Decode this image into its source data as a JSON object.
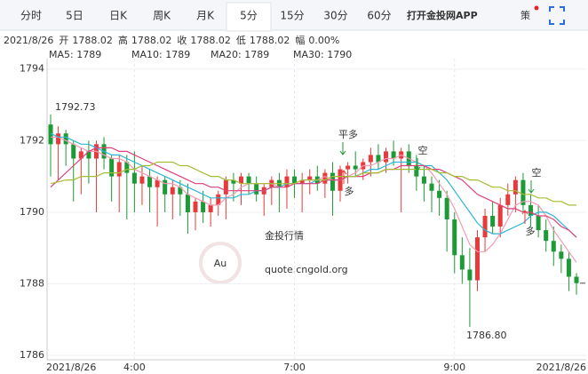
{
  "tabs": [
    "分时",
    "5日",
    "日K",
    "周K",
    "月K",
    "5分",
    "15分",
    "30分",
    "60分"
  ],
  "active_tab": 5,
  "app_link": "打开金投网APP",
  "strategy_icon": "策",
  "info": {
    "date": "2021/8/26",
    "fields": [
      {
        "label": "开",
        "value": "1788.02"
      },
      {
        "label": "高",
        "value": "1788.02"
      },
      {
        "label": "收",
        "value": "1788.02"
      },
      {
        "label": "低",
        "value": "1788.02"
      },
      {
        "label": "幅",
        "value": "0.00%"
      }
    ]
  },
  "watermark": {
    "logo": "Au",
    "name": "金投行情",
    "url": "quote.cngold.org"
  },
  "chart_data": {
    "type": "candlestick",
    "categories": [
      "2021/8/26",
      null,
      null,
      null,
      null,
      null,
      null,
      null,
      null,
      null,
      null,
      "4:00",
      null,
      null,
      null,
      null,
      null,
      null,
      null,
      null,
      null,
      null,
      null,
      null,
      null,
      null,
      null,
      null,
      null,
      null,
      null,
      null,
      "7:00",
      null,
      null,
      null,
      null,
      null,
      null,
      null,
      null,
      null,
      null,
      null,
      null,
      null,
      null,
      null,
      null,
      null,
      null,
      null,
      null,
      "9:00",
      null,
      null,
      null,
      null,
      null,
      null,
      null,
      null,
      null,
      null,
      null,
      null,
      null,
      null,
      null,
      "2021/8/26"
    ],
    "open": [
      1792.45,
      1791.9,
      1792.2,
      1791.9,
      1791.5,
      1791.7,
      1791.5,
      1791.9,
      1791.5,
      1791.0,
      1791.4,
      1791.1,
      1790.8,
      1791.0,
      1790.7,
      1790.9,
      1790.5,
      1790.7,
      1790.5,
      1790.0,
      1790.3,
      1790.0,
      1790.2,
      1790.5,
      1790.9,
      1790.8,
      1791.0,
      1790.8,
      1790.5,
      1790.7,
      1790.9,
      1790.7,
      1791.0,
      1790.8,
      1790.9,
      1791.0,
      1790.8,
      1791.1,
      1790.6,
      1791.2,
      1791.3,
      1791.2,
      1791.4,
      1791.6,
      1791.4,
      1791.7,
      1791.5,
      1791.7,
      1791.3,
      1791.0,
      1790.8,
      1790.6,
      1790.4,
      1789.8,
      1788.8,
      1788.4,
      1788.1,
      1789.3,
      1789.9,
      1789.6,
      1790.2,
      1790.5,
      1790.9,
      1790.2,
      1789.9,
      1789.5,
      1789.2,
      1788.9,
      1788.7,
      1788.2
    ],
    "high": [
      1792.73,
      1792.4,
      1792.3,
      1792.0,
      1791.8,
      1792.0,
      1792.0,
      1792.1,
      1791.6,
      1791.6,
      1791.6,
      1791.7,
      1791.3,
      1791.2,
      1791.0,
      1791.0,
      1790.9,
      1790.9,
      1790.8,
      1790.4,
      1790.6,
      1790.4,
      1790.6,
      1791.0,
      1791.1,
      1791.1,
      1791.1,
      1791.0,
      1790.8,
      1791.0,
      1791.1,
      1791.2,
      1791.2,
      1791.1,
      1791.2,
      1791.3,
      1791.2,
      1791.4,
      1791.3,
      1791.4,
      1791.7,
      1791.5,
      1791.8,
      1791.9,
      1791.8,
      1792.0,
      1791.8,
      1791.9,
      1791.6,
      1791.3,
      1791.0,
      1790.9,
      1790.6,
      1790.0,
      1789.3,
      1789.0,
      1789.5,
      1790.1,
      1790.3,
      1790.4,
      1790.8,
      1791.0,
      1791.1,
      1790.5,
      1790.2,
      1789.8,
      1789.6,
      1789.1,
      1788.9,
      1788.3
    ],
    "low": [
      1791.0,
      1790.9,
      1791.3,
      1790.3,
      1790.5,
      1790.8,
      1790.0,
      1791.2,
      1790.3,
      1790.0,
      1789.8,
      1790.0,
      1790.2,
      1790.0,
      1789.6,
      1790.0,
      1789.8,
      1789.9,
      1789.4,
      1789.5,
      1789.7,
      1789.6,
      1789.9,
      1789.8,
      1790.3,
      1790.2,
      1790.5,
      1790.3,
      1789.9,
      1790.2,
      1790.0,
      1790.1,
      1790.4,
      1790.0,
      1790.5,
      1790.6,
      1790.4,
      1789.9,
      1790.3,
      1790.8,
      1791.0,
      1790.9,
      1791.0,
      1791.2,
      1791.1,
      1791.3,
      1790.0,
      1791.1,
      1790.6,
      1790.3,
      1790.0,
      1789.9,
      1788.9,
      1788.3,
      1788.0,
      1786.8,
      1787.8,
      1788.9,
      1789.4,
      1789.3,
      1789.9,
      1790.0,
      1790.0,
      1789.6,
      1789.3,
      1788.9,
      1788.5,
      1788.3,
      1787.8,
      1787.7
    ],
    "close": [
      1791.9,
      1792.2,
      1791.9,
      1791.5,
      1791.7,
      1791.5,
      1791.9,
      1791.5,
      1791.0,
      1791.4,
      1791.1,
      1790.8,
      1791.0,
      1790.7,
      1790.9,
      1790.5,
      1790.7,
      1790.5,
      1790.0,
      1790.3,
      1790.0,
      1790.2,
      1790.5,
      1790.9,
      1790.8,
      1791.0,
      1790.8,
      1790.5,
      1790.7,
      1790.9,
      1790.7,
      1791.0,
      1790.8,
      1790.9,
      1791.0,
      1790.8,
      1791.1,
      1790.6,
      1791.2,
      1791.3,
      1791.2,
      1791.4,
      1791.6,
      1791.4,
      1791.7,
      1791.5,
      1791.7,
      1791.3,
      1791.0,
      1790.8,
      1790.6,
      1790.4,
      1789.8,
      1788.8,
      1788.4,
      1788.1,
      1789.3,
      1789.9,
      1789.6,
      1790.2,
      1790.5,
      1790.9,
      1790.2,
      1789.9,
      1789.5,
      1789.2,
      1788.9,
      1788.7,
      1788.2,
      1788.02
    ],
    "up_color": "#e83a3a",
    "down_color": "#1c9a36",
    "series": [
      {
        "name": "MA5: 1789",
        "color": "#f29bb4",
        "values": [
          1792.1,
          1792.1,
          1792.0,
          1791.9,
          1791.8,
          1791.7,
          1791.7,
          1791.6,
          1791.5,
          1791.5,
          1791.4,
          1791.2,
          1791.1,
          1791.0,
          1790.9,
          1790.8,
          1790.8,
          1790.7,
          1790.5,
          1790.4,
          1790.3,
          1790.2,
          1790.2,
          1790.4,
          1790.5,
          1790.7,
          1790.8,
          1790.8,
          1790.8,
          1790.8,
          1790.7,
          1790.8,
          1790.8,
          1790.9,
          1790.9,
          1790.9,
          1791.0,
          1790.9,
          1790.9,
          1791.0,
          1791.1,
          1791.3,
          1791.3,
          1791.4,
          1791.5,
          1791.5,
          1791.6,
          1791.5,
          1791.4,
          1791.3,
          1791.1,
          1790.8,
          1790.5,
          1790.1,
          1789.6,
          1789.1,
          1788.9,
          1788.9,
          1789.1,
          1789.4,
          1789.8,
          1790.2,
          1790.3,
          1790.3,
          1790.2,
          1789.9,
          1789.5,
          1789.2,
          1788.9,
          1788.6
        ]
      },
      {
        "name": "MA10: 1789",
        "color": "#2eb6d6",
        "values": [
          1792.2,
          1792.1,
          1792.1,
          1792.0,
          1791.9,
          1791.9,
          1791.8,
          1791.7,
          1791.6,
          1791.6,
          1791.5,
          1791.4,
          1791.3,
          1791.2,
          1791.1,
          1791.0,
          1790.9,
          1790.8,
          1790.7,
          1790.6,
          1790.5,
          1790.4,
          1790.4,
          1790.4,
          1790.4,
          1790.5,
          1790.5,
          1790.6,
          1790.6,
          1790.7,
          1790.7,
          1790.8,
          1790.8,
          1790.8,
          1790.8,
          1790.9,
          1790.9,
          1790.9,
          1790.9,
          1791.0,
          1791.0,
          1791.1,
          1791.2,
          1791.2,
          1791.3,
          1791.4,
          1791.4,
          1791.4,
          1791.4,
          1791.3,
          1791.3,
          1791.1,
          1790.9,
          1790.6,
          1790.3,
          1790.0,
          1789.7,
          1789.5,
          1789.4,
          1789.4,
          1789.5,
          1789.6,
          1789.7,
          1789.9,
          1790.0,
          1790.0,
          1789.9,
          1789.7,
          1789.5,
          1789.3
        ]
      },
      {
        "name": "MA20: 1789",
        "color": "#e0407c",
        "values": [
          1790.7,
          1790.9,
          1791.1,
          1791.3,
          1791.5,
          1791.7,
          1791.8,
          1791.8,
          1791.8,
          1791.7,
          1791.7,
          1791.6,
          1791.5,
          1791.4,
          1791.3,
          1791.2,
          1791.1,
          1791.0,
          1790.9,
          1790.8,
          1790.8,
          1790.7,
          1790.7,
          1790.6,
          1790.6,
          1790.6,
          1790.6,
          1790.6,
          1790.6,
          1790.7,
          1790.7,
          1790.7,
          1790.8,
          1790.8,
          1790.8,
          1790.8,
          1790.9,
          1790.9,
          1790.9,
          1791.0,
          1791.0,
          1791.0,
          1791.1,
          1791.1,
          1791.2,
          1791.2,
          1791.3,
          1791.3,
          1791.3,
          1791.3,
          1791.2,
          1791.2,
          1791.1,
          1791.0,
          1790.9,
          1790.7,
          1790.5,
          1790.4,
          1790.3,
          1790.2,
          1790.1,
          1790.1,
          1790.0,
          1790.0,
          1789.9,
          1789.9,
          1789.8,
          1789.6,
          1789.5,
          1789.3
        ]
      },
      {
        "name": "MA30: 1790",
        "color": "#a3bd36",
        "values": [
          1790.8,
          1790.85,
          1790.9,
          1790.9,
          1791.0,
          1791.0,
          1791.0,
          1791.1,
          1791.1,
          1791.1,
          1791.2,
          1791.2,
          1791.3,
          1791.3,
          1791.4,
          1791.4,
          1791.4,
          1791.3,
          1791.3,
          1791.2,
          1791.1,
          1791.0,
          1791.0,
          1790.9,
          1790.9,
          1790.8,
          1790.8,
          1790.8,
          1790.8,
          1790.8,
          1790.8,
          1790.8,
          1790.8,
          1790.9,
          1790.9,
          1790.9,
          1790.9,
          1791.0,
          1791.0,
          1791.0,
          1791.0,
          1791.1,
          1791.1,
          1791.1,
          1791.2,
          1791.2,
          1791.2,
          1791.2,
          1791.2,
          1791.2,
          1791.2,
          1791.1,
          1791.1,
          1791.0,
          1791.0,
          1790.9,
          1790.9,
          1790.8,
          1790.7,
          1790.7,
          1790.6,
          1790.6,
          1790.5,
          1790.5,
          1790.4,
          1790.4,
          1790.3,
          1790.3,
          1790.2,
          1790.2
        ]
      }
    ],
    "ylim": [
      1785.88,
      1794.29
    ],
    "yticks": [
      1794,
      1792,
      1790,
      1788,
      1786
    ],
    "grid": true,
    "extremes": [
      {
        "value": 1792.73
      },
      {
        "value": 1786.8,
        "label": "1786.80"
      }
    ],
    "annotations": [
      "平多",
      "多",
      "空",
      "空",
      "多"
    ]
  }
}
